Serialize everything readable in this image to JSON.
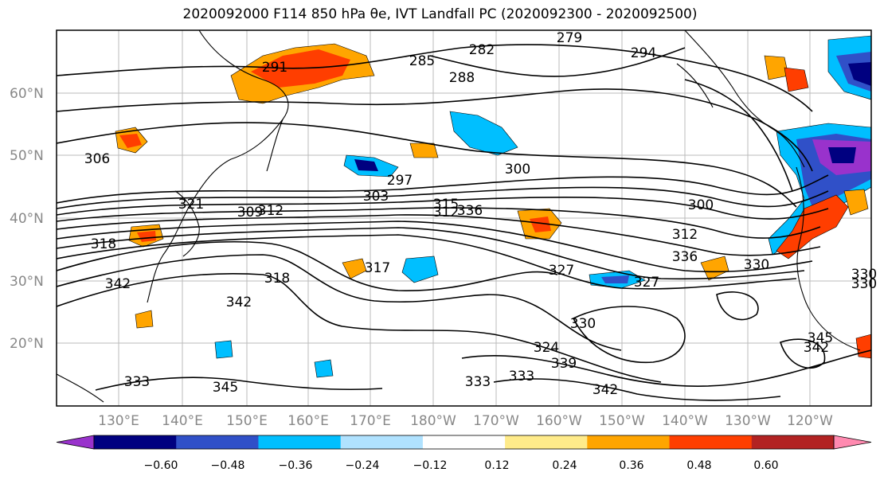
{
  "title": "2020092000 F114 850 hPa θe, IVT Landfall PC (2020092300 - 2020092500)",
  "map": {
    "lat_labels": [
      "60°N",
      "50°N",
      "40°N",
      "30°N",
      "20°N"
    ],
    "lon_labels": [
      "130°E",
      "140°E",
      "150°E",
      "160°E",
      "170°E",
      "180°W",
      "170°W",
      "160°W",
      "150°W",
      "140°W",
      "130°W",
      "120°W"
    ],
    "contour_labels": [
      "291",
      "282",
      "279",
      "285",
      "288",
      "294",
      "300",
      "306",
      "297",
      "303",
      "300",
      "309",
      "312",
      "315",
      "318",
      "317",
      "327",
      "327",
      "330",
      "318",
      "342",
      "342",
      "336",
      "330",
      "324",
      "333",
      "333",
      "339",
      "333",
      "345",
      "345",
      "342",
      "330",
      "342",
      "330",
      "321",
      "336",
      "312",
      "312"
    ]
  },
  "colorbar": {
    "colors": [
      "#9932cc",
      "#000080",
      "#3050c8",
      "#00bfff",
      "#b0e2ff",
      "#ffffff",
      "#ffeb8a",
      "#ffa500",
      "#ff3e00",
      "#b22222",
      "#ff8ab0"
    ],
    "tick_labels": [
      "−0.60",
      "−0.48",
      "−0.36",
      "−0.24",
      "−0.12",
      "0.12",
      "0.24",
      "0.36",
      "0.48",
      "0.60"
    ]
  }
}
